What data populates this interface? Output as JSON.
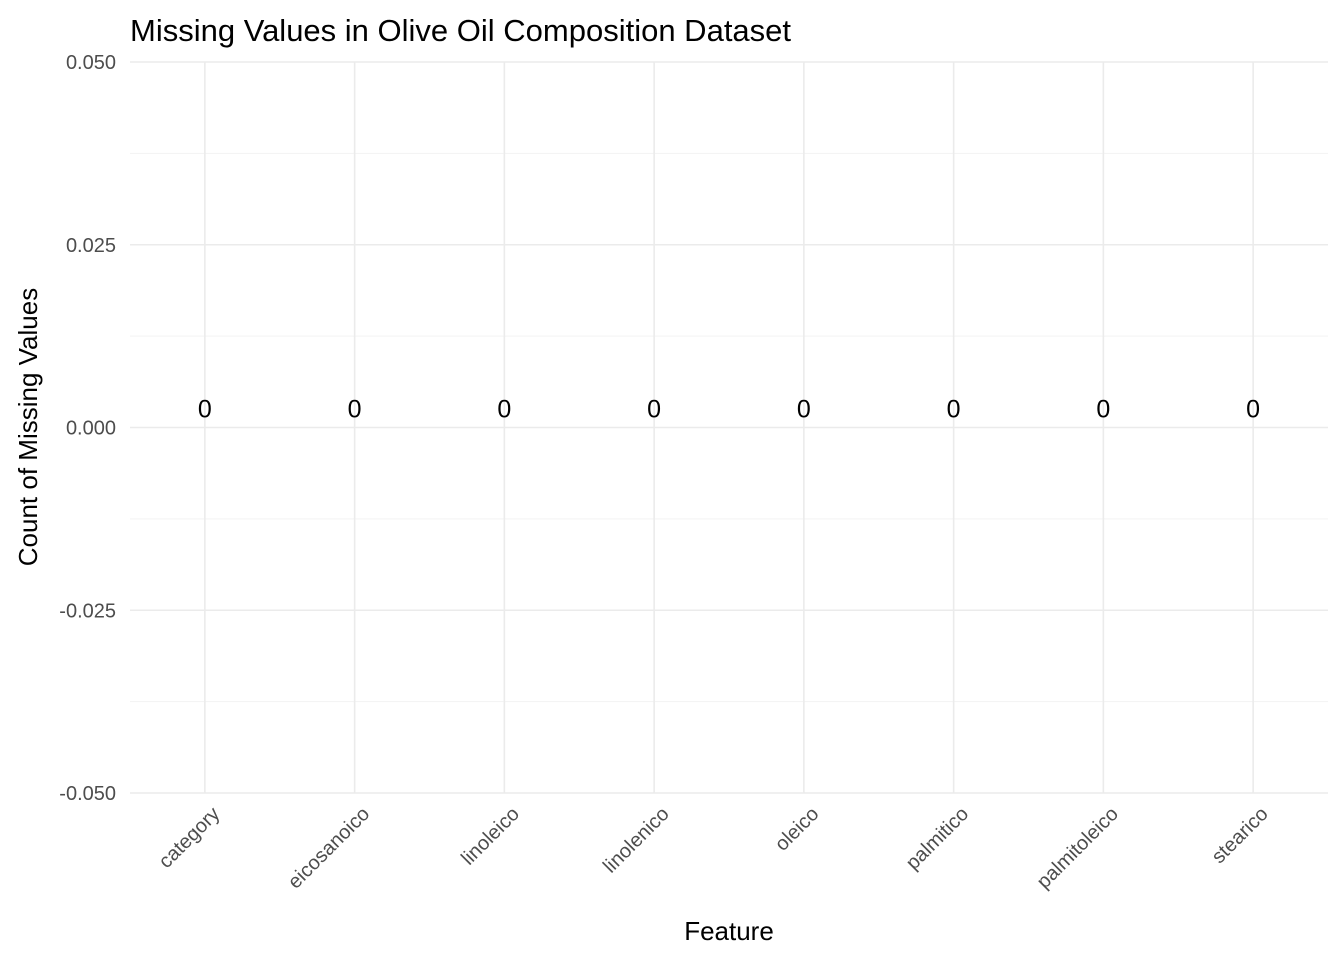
{
  "chart_data": {
    "type": "bar",
    "title": "Missing Values in Olive Oil Composition Dataset",
    "xlabel": "Feature",
    "ylabel": "Count of Missing Values",
    "categories": [
      "category",
      "eicosanoico",
      "linoleico",
      "linolenico",
      "oleico",
      "palmitico",
      "palmitoleico",
      "stearico"
    ],
    "values": [
      0,
      0,
      0,
      0,
      0,
      0,
      0,
      0
    ],
    "data_labels": [
      "0",
      "0",
      "0",
      "0",
      "0",
      "0",
      "0",
      "0"
    ],
    "ylim": [
      -0.05,
      0.05
    ],
    "y_ticks": [
      -0.05,
      -0.025,
      0,
      0.025,
      0.05
    ],
    "y_tick_labels": [
      "-0.050",
      "-0.025",
      "0.000",
      "0.025",
      "0.050"
    ],
    "grid": true,
    "legend": "none"
  },
  "colors": {
    "grid_major": "#ebebeb",
    "grid_minor": "#f3f3f3",
    "tick_text": "#4d4d4d",
    "text": "#000000"
  }
}
